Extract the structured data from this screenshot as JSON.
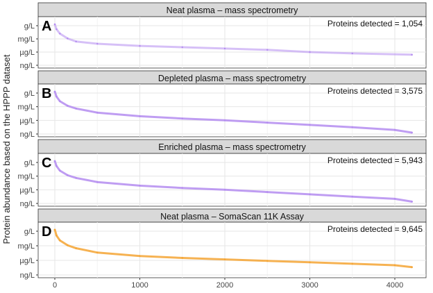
{
  "chart_data": [
    {
      "type": "line",
      "panel": "A",
      "title": "Neat plasma – mass spectrometry",
      "annotation": "Proteins detected = 1,054",
      "color": "#b48cf0",
      "x": [
        0,
        20,
        60,
        150,
        250,
        500,
        1000,
        1500,
        2000,
        2500,
        3000,
        3500,
        4200
      ],
      "y": [
        0.3,
        -0.8,
        -1.8,
        -2.9,
        -3.6,
        -4.1,
        -4.6,
        -4.9,
        -5.2,
        -5.5,
        -6.0,
        -6.3,
        -6.6
      ]
    },
    {
      "type": "line",
      "panel": "B",
      "title": "Depleted plasma – mass spectrometry",
      "annotation": "Proteins detected = 3,575",
      "color": "#b48cf0",
      "x": [
        0,
        20,
        60,
        150,
        250,
        500,
        1000,
        1500,
        2000,
        2500,
        3000,
        3500,
        4000,
        4200
      ],
      "y": [
        0.3,
        -0.8,
        -1.8,
        -2.8,
        -3.4,
        -4.3,
        -5.1,
        -5.6,
        -6.0,
        -6.5,
        -7.0,
        -7.5,
        -8.1,
        -8.7
      ]
    },
    {
      "type": "line",
      "panel": "C",
      "title": "Enriched plasma – mass spectrometry",
      "annotation": "Proteins detected = 5,943",
      "color": "#b48cf0",
      "x": [
        0,
        20,
        60,
        150,
        250,
        500,
        1000,
        1500,
        2000,
        2500,
        3000,
        3500,
        4000,
        4200
      ],
      "y": [
        0.3,
        -0.8,
        -1.8,
        -2.8,
        -3.4,
        -4.3,
        -5.1,
        -5.6,
        -6.0,
        -6.5,
        -7.0,
        -7.5,
        -8.0,
        -8.6
      ]
    },
    {
      "type": "line",
      "panel": "D",
      "title": "Neat plasma – SomaScan 11K Assay",
      "annotation": "Proteins detected = 9,645",
      "color": "#f5a534",
      "x": [
        0,
        20,
        60,
        150,
        250,
        500,
        1000,
        1500,
        2000,
        2500,
        3000,
        3500,
        4000,
        4200
      ],
      "y": [
        0.3,
        -0.9,
        -1.9,
        -2.9,
        -3.5,
        -4.4,
        -5.1,
        -5.5,
        -5.8,
        -6.1,
        -6.4,
        -6.7,
        -7.0,
        -7.4
      ]
    }
  ],
  "ylabel": "Protein abundance based on the HPPP dataset",
  "y_ticks": [
    {
      "value": 0,
      "label": "g/L"
    },
    {
      "value": -3,
      "label": "mg/L"
    },
    {
      "value": -6,
      "label": "µg/L"
    },
    {
      "value": -9,
      "label": "ng/L"
    }
  ],
  "x_ticks": [
    0,
    1000,
    2000,
    3000,
    4000
  ],
  "xlim": [
    -150,
    4400
  ],
  "ylim": [
    -10,
    1.5
  ],
  "grid": true
}
